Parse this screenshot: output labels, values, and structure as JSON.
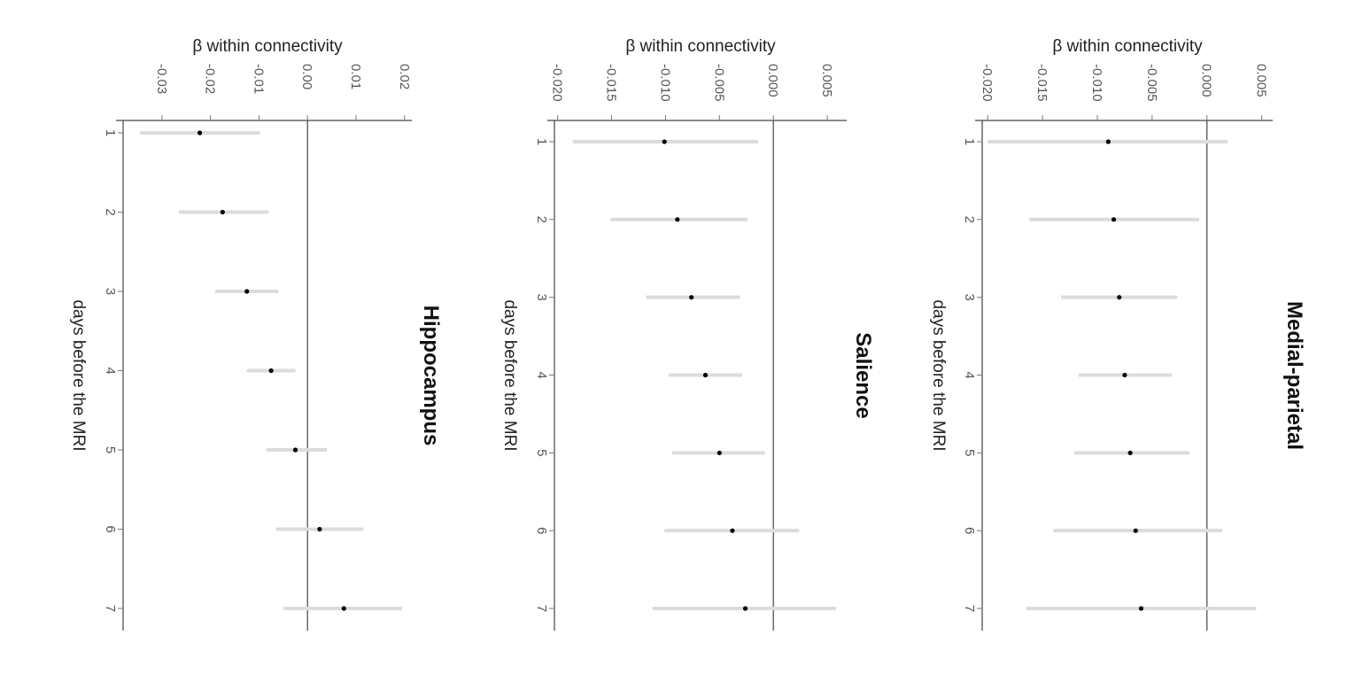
{
  "chart_data": [
    {
      "type": "scatter",
      "title": "Medial-parietal",
      "xlabel": "days before the MRI",
      "ylabel": "β within connectivity",
      "categories": [
        "1",
        "2",
        "3",
        "4",
        "5",
        "6",
        "7"
      ],
      "values": [
        -0.009,
        -0.0085,
        -0.008,
        -0.0075,
        -0.007,
        -0.0065,
        -0.006
      ],
      "ci_low": [
        -0.02,
        -0.0162,
        -0.0133,
        -0.0117,
        -0.0121,
        -0.014,
        -0.0165
      ],
      "ci_high": [
        0.0019,
        -0.0007,
        -0.0027,
        -0.0032,
        -0.0016,
        0.0014,
        0.0045
      ],
      "ylim": [
        -0.0205,
        0.006
      ],
      "yticks": [
        -0.02,
        -0.015,
        -0.01,
        -0.005,
        0.0,
        0.005
      ],
      "ytick_labels": [
        "-0.020",
        "-0.015",
        "-0.010",
        "-0.005",
        "0.000",
        "0.005"
      ],
      "reference_line": 0,
      "grid": false
    },
    {
      "type": "scatter",
      "title": "Salience",
      "xlabel": "days before the MRI",
      "ylabel": "β within connectivity",
      "categories": [
        "1",
        "2",
        "3",
        "4",
        "5",
        "6",
        "7"
      ],
      "values": [
        -0.0101,
        -0.0089,
        -0.0076,
        -0.0063,
        -0.005,
        -0.0038,
        -0.0026
      ],
      "ci_low": [
        -0.0186,
        -0.0151,
        -0.0118,
        -0.0097,
        -0.0094,
        -0.0101,
        -0.0112
      ],
      "ci_high": [
        -0.0014,
        -0.0024,
        -0.0031,
        -0.0029,
        -0.0008,
        0.0024,
        0.0058
      ],
      "ylim": [
        -0.0203,
        0.0068
      ],
      "yticks": [
        -0.02,
        -0.015,
        -0.01,
        -0.005,
        0.0,
        0.005
      ],
      "ytick_labels": [
        "-0.020",
        "-0.015",
        "-0.010",
        "-0.005",
        "0.000",
        "0.005"
      ],
      "reference_line": 0,
      "grid": false
    },
    {
      "type": "scatter",
      "title": "Hippocampus",
      "xlabel": "days before the MRI",
      "ylabel": "β within connectivity",
      "categories": [
        "1",
        "2",
        "3",
        "4",
        "5",
        "6",
        "7"
      ],
      "values": [
        -0.0222,
        -0.0175,
        -0.0125,
        -0.0075,
        -0.0025,
        0.0025,
        0.0075
      ],
      "ci_low": [
        -0.0345,
        -0.0265,
        -0.019,
        -0.0125,
        -0.0085,
        -0.0065,
        -0.005
      ],
      "ci_high": [
        -0.0098,
        -0.008,
        -0.006,
        -0.0025,
        0.004,
        0.0115,
        0.0195
      ],
      "ylim": [
        -0.038,
        0.0215
      ],
      "yticks": [
        -0.03,
        -0.02,
        -0.01,
        0.0,
        0.01,
        0.02
      ],
      "ytick_labels": [
        "-0.03",
        "-0.02",
        "-0.01",
        "0.00",
        "0.01",
        "0.02"
      ],
      "reference_line": 0,
      "grid": false
    }
  ]
}
